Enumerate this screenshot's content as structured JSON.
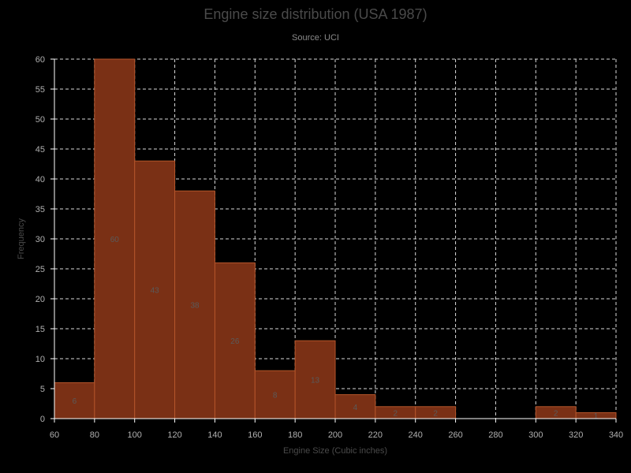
{
  "chart_data": {
    "type": "bar",
    "title": "Engine size distribution (USA 1987)",
    "subtitle": "Source: UCI",
    "xlabel": "Engine Size (Cubic inches)",
    "ylabel": "Frequency",
    "xlim": [
      60,
      340
    ],
    "ylim": [
      0,
      60
    ],
    "x_ticks": [
      60,
      80,
      100,
      120,
      140,
      160,
      180,
      200,
      220,
      240,
      260,
      280,
      300,
      320,
      340
    ],
    "y_ticks": [
      0,
      5,
      10,
      15,
      20,
      25,
      30,
      35,
      40,
      45,
      50,
      55,
      60
    ],
    "grid": true,
    "bins": [
      {
        "x0": 60,
        "x1": 80,
        "value": 6
      },
      {
        "x0": 80,
        "x1": 100,
        "value": 60
      },
      {
        "x0": 100,
        "x1": 120,
        "value": 43
      },
      {
        "x0": 120,
        "x1": 140,
        "value": 38
      },
      {
        "x0": 140,
        "x1": 160,
        "value": 26
      },
      {
        "x0": 160,
        "x1": 180,
        "value": 8
      },
      {
        "x0": 180,
        "x1": 200,
        "value": 13
      },
      {
        "x0": 200,
        "x1": 220,
        "value": 4
      },
      {
        "x0": 220,
        "x1": 240,
        "value": 2
      },
      {
        "x0": 240,
        "x1": 260,
        "value": 2
      },
      {
        "x0": 260,
        "x1": 280,
        "value": 0
      },
      {
        "x0": 280,
        "x1": 300,
        "value": 0
      },
      {
        "x0": 300,
        "x1": 320,
        "value": 2
      },
      {
        "x0": 320,
        "x1": 340,
        "value": 1
      }
    ],
    "colors": {
      "bar_fill": "#7a3015",
      "bar_stroke": "#b4552a",
      "grid": "#d9d9d9",
      "axis": "#ffffff",
      "tick_text": "#b0b0b0",
      "data_label": "#5a5a5a"
    }
  }
}
